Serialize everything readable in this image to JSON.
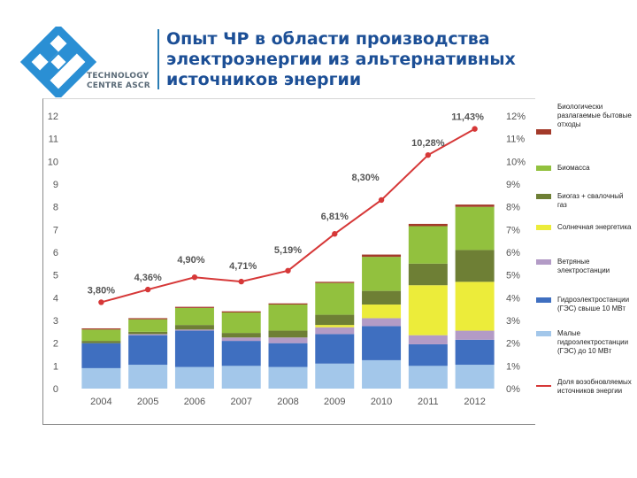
{
  "logo": {
    "line1": "TECHNOLOGY",
    "line2": "CENTRE ASCR"
  },
  "title": "Опыт ЧР в области производства электроэнергии из альтернативных источников энергии",
  "colors": {
    "waste": "#a33a2a",
    "biomass": "#92c13e",
    "biogas": "#6e7f35",
    "solar": "#ecec3a",
    "wind": "#b39bc6",
    "hydro_large": "#3f6fc0",
    "hydro_small": "#a3c7ea",
    "share_line": "#d63838",
    "title": "#1c4f96",
    "logo": "#2a8fd4"
  },
  "chart_data": {
    "type": "bar",
    "stacked": true,
    "categories": [
      "2004",
      "2005",
      "2006",
      "2007",
      "2008",
      "2009",
      "2010",
      "2011",
      "2012"
    ],
    "y_left_ticks": [
      "0",
      "1",
      "2",
      "3",
      "4",
      "5",
      "6",
      "7",
      "8",
      "9",
      "10",
      "11",
      "12"
    ],
    "y_right_ticks": [
      "0%",
      "1%",
      "2%",
      "3%",
      "4%",
      "5%",
      "6%",
      "7%",
      "8%",
      "9%",
      "10%",
      "11%",
      "12%"
    ],
    "ylim": [
      0,
      12
    ],
    "y2lim": [
      0,
      12
    ],
    "grid": false,
    "legend_position": "right",
    "series": [
      {
        "name": "Малые гидроэлектростанции (ГЭС) до 10 МВт",
        "key": "hydro_small",
        "values": [
          0.9,
          1.05,
          0.95,
          1.0,
          0.95,
          1.1,
          1.25,
          1.0,
          1.05
        ]
      },
      {
        "name": "Гидроэлектростанции (ГЭС) свыше 10 МВт",
        "key": "hydro_large",
        "values": [
          1.1,
          1.3,
          1.6,
          1.1,
          1.05,
          1.3,
          1.5,
          0.95,
          1.1
        ]
      },
      {
        "name": "Ветряные электростанции",
        "key": "wind",
        "values": [
          0.0,
          0.05,
          0.05,
          0.15,
          0.25,
          0.3,
          0.35,
          0.4,
          0.4
        ]
      },
      {
        "name": "Солнечная энергетика",
        "key": "solar",
        "values": [
          0.0,
          0.0,
          0.0,
          0.0,
          0.0,
          0.1,
          0.6,
          2.2,
          2.15
        ]
      },
      {
        "name": "Биогаз + свалочный газ",
        "key": "biogas",
        "values": [
          0.1,
          0.1,
          0.2,
          0.2,
          0.3,
          0.45,
          0.6,
          0.95,
          1.4
        ]
      },
      {
        "name": "Биомасса",
        "key": "biomass",
        "values": [
          0.5,
          0.55,
          0.75,
          0.9,
          1.15,
          1.4,
          1.5,
          1.65,
          1.9
        ]
      },
      {
        "name": "Биологически разлагаемые бытовые отходы",
        "key": "waste",
        "values": [
          0.05,
          0.05,
          0.05,
          0.05,
          0.05,
          0.05,
          0.1,
          0.1,
          0.1
        ]
      }
    ],
    "line": {
      "name": "Доля возобновляемых источников энергии",
      "key": "share_line",
      "values": [
        3.8,
        4.36,
        4.9,
        4.71,
        5.19,
        6.81,
        8.3,
        10.28,
        11.43
      ],
      "labels": [
        "3,80%",
        "4,36%",
        "4,90%",
        "4,71%",
        "5,19%",
        "6,81%",
        "8,30%",
        "10,28%",
        "11,43%"
      ]
    }
  },
  "legend": [
    {
      "key": "waste",
      "label": "Биологически разлагаемые бытовые отходы"
    },
    {
      "key": "biomass",
      "label": "Биомасса"
    },
    {
      "key": "biogas",
      "label": "Биогаз + свалочный газ"
    },
    {
      "key": "solar",
      "label": "Солнечная энергетика"
    },
    {
      "key": "wind",
      "label": "Ветряные электростанции"
    },
    {
      "key": "hydro_large",
      "label": "Гидроэлектростанции (ГЭС) свыше 10 МВт"
    },
    {
      "key": "hydro_small",
      "label": "Малые гидроэлектростанции (ГЭС) до 10 МВт"
    },
    {
      "key": "share_line",
      "label": "Доля возобновляемых источников энергии"
    }
  ]
}
